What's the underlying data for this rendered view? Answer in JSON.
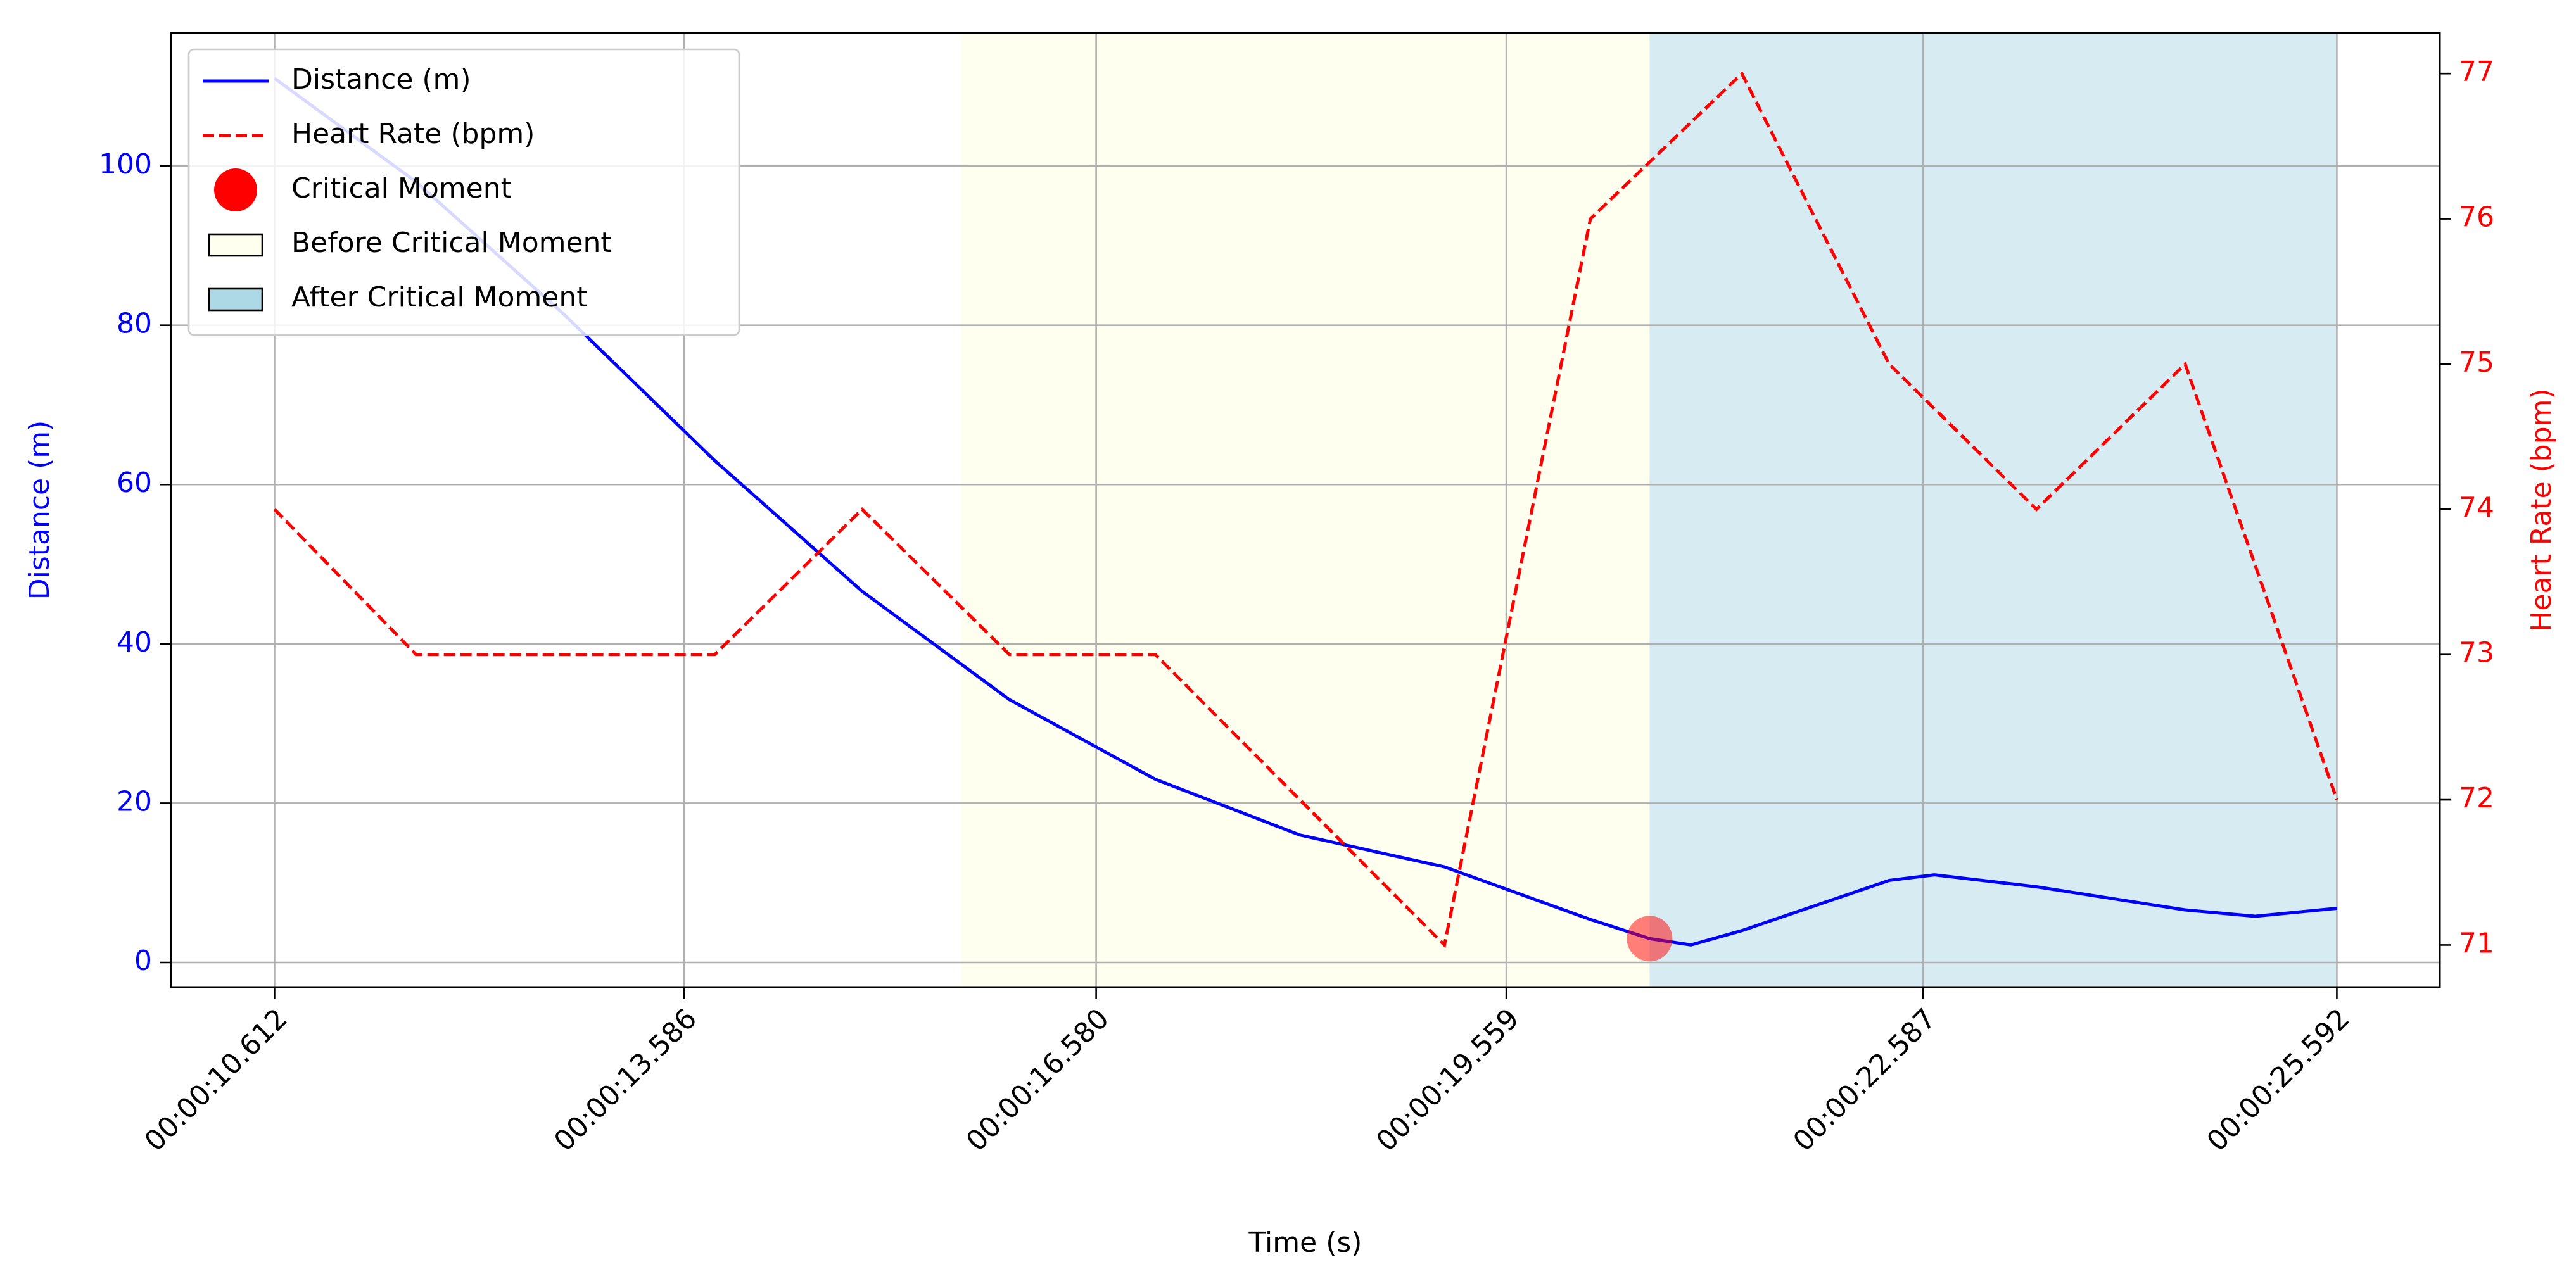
{
  "chart_data": {
    "type": "line",
    "xlabel": "Time (s)",
    "ylabel": "Distance (m)",
    "y2label": "Heart Rate (bpm)",
    "xlim": [
      9.86,
      26.34
    ],
    "xticks": [
      {
        "value": 10.612,
        "label": "00:00:10.612"
      },
      {
        "value": 13.586,
        "label": "00:00:13.586"
      },
      {
        "value": 16.58,
        "label": "00:00:16.580"
      },
      {
        "value": 19.559,
        "label": "00:00:19.559"
      },
      {
        "value": 22.587,
        "label": "00:00:22.587"
      },
      {
        "value": 25.592,
        "label": "00:00:25.592"
      }
    ],
    "ylim": [
      -3.1,
      116.7
    ],
    "yticks": [
      0,
      20,
      40,
      60,
      80,
      100
    ],
    "y2lim": [
      70.71,
      77.28
    ],
    "y2ticks": [
      71,
      72,
      73,
      74,
      75,
      76,
      77
    ],
    "grid": true,
    "legend": "upper left",
    "series": [
      {
        "name": "Distance (m)",
        "color": "#0000ff",
        "style": "solid",
        "x": [
          10.612,
          11.64,
          12.7,
          13.81,
          14.88,
          15.95,
          17.01,
          18.06,
          19.11,
          20.17,
          20.6,
          20.9,
          21.27,
          22.34,
          22.67,
          23.41,
          24.49,
          25.0,
          25.592
        ],
        "values": [
          111,
          98,
          81.6,
          63,
          46.6,
          33,
          23,
          16,
          12,
          5.4,
          3,
          2.2,
          4,
          10.3,
          11,
          9.5,
          6.6,
          5.8,
          6.8
        ]
      },
      {
        "name": "Heart Rate (bpm)",
        "color": "#ff0000",
        "style": "dashed",
        "axis": "y2",
        "x": [
          10.612,
          11.64,
          13.81,
          14.88,
          15.95,
          17.01,
          19.11,
          20.17,
          21.27,
          22.34,
          23.41,
          24.49,
          25.592
        ],
        "values": [
          74,
          73,
          73,
          74,
          73,
          73,
          71,
          76,
          77,
          75,
          74,
          75,
          72
        ]
      }
    ],
    "points": [
      {
        "name": "Critical Moment",
        "color": "#ff0000",
        "x": 20.6,
        "y": 3
      }
    ],
    "spans": [
      {
        "name": "Before Critical Moment",
        "color": "#fffff0",
        "x": [
          15.6,
          20.6
        ]
      },
      {
        "name": "After Critical Moment",
        "color": "#add8e6",
        "x": [
          20.6,
          25.59
        ]
      }
    ]
  }
}
